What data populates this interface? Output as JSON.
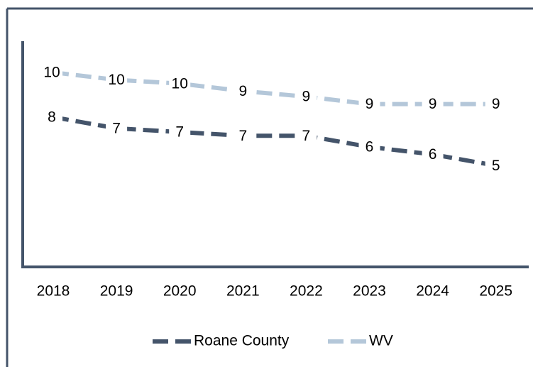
{
  "chart_data": {
    "type": "line",
    "categories": [
      "2018",
      "2019",
      "2020",
      "2021",
      "2022",
      "2023",
      "2024",
      "2025"
    ],
    "series": [
      {
        "name": "Roane County",
        "color": "#44546a",
        "values": [
          8.0,
          7.4,
          7.2,
          7.0,
          7.0,
          6.4,
          6.0,
          5.4
        ],
        "value_labels": [
          "8",
          "7",
          "7",
          "7",
          "7",
          "6",
          "6",
          "5"
        ]
      },
      {
        "name": "WV",
        "color": "#b4c7d9",
        "values": [
          10.4,
          10.0,
          9.8,
          9.4,
          9.1,
          8.7,
          8.7,
          8.7
        ],
        "value_labels": [
          "10",
          "10",
          "10",
          "9",
          "9",
          "9",
          "9",
          "9"
        ]
      }
    ],
    "ylim": [
      0,
      12
    ],
    "legend": "bottom"
  }
}
